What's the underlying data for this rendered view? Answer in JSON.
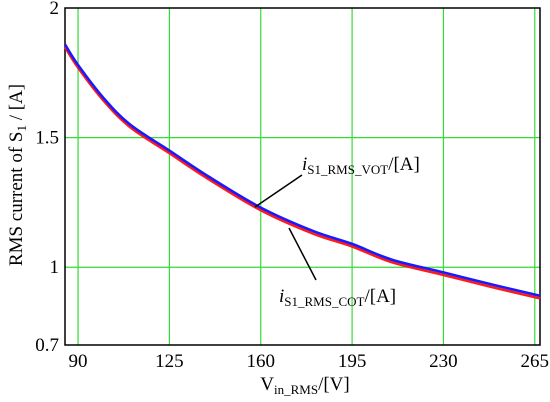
{
  "chart_data": {
    "type": "line",
    "xlabel": {
      "main": "V",
      "sub": "in_RMS",
      "tail": "/[V]"
    },
    "ylabel": {
      "main": "RMS current of S",
      "sub": "1",
      "tail": " / [A]"
    },
    "xlim": [
      85,
      267
    ],
    "ylim": [
      0.7,
      2
    ],
    "x_ticks": [
      90,
      125,
      160,
      195,
      230,
      265
    ],
    "y_ticks": [
      0.7,
      1,
      1.5,
      2
    ],
    "y_tick_labels": [
      "0.7",
      "1",
      "1.5",
      "2"
    ],
    "grid": true,
    "grid_color": "#33dd33",
    "series": [
      {
        "name": "i_S1_RMS_VOT/[A]",
        "color": "#1a1aff",
        "x": [
          85,
          90,
          100,
          110,
          125,
          140,
          160,
          180,
          195,
          210,
          230,
          250,
          267
        ],
        "y": [
          1.86,
          1.78,
          1.65,
          1.55,
          1.45,
          1.35,
          1.23,
          1.14,
          1.09,
          1.03,
          0.98,
          0.93,
          0.89
        ]
      },
      {
        "name": "i_S1_RMS_COT/[A]",
        "color": "#ff1a1a",
        "x": [
          85,
          90,
          100,
          110,
          125,
          140,
          160,
          180,
          195,
          210,
          230,
          250,
          267
        ],
        "y": [
          1.85,
          1.77,
          1.64,
          1.54,
          1.44,
          1.34,
          1.22,
          1.13,
          1.08,
          1.02,
          0.97,
          0.92,
          0.88
        ]
      }
    ],
    "annotations": [
      {
        "main": "i",
        "sub": "S1_RMS_VOT",
        "tail": "/[A]"
      },
      {
        "main": "i",
        "sub": "S1_RMS_COT",
        "tail": "/[A]"
      }
    ]
  }
}
